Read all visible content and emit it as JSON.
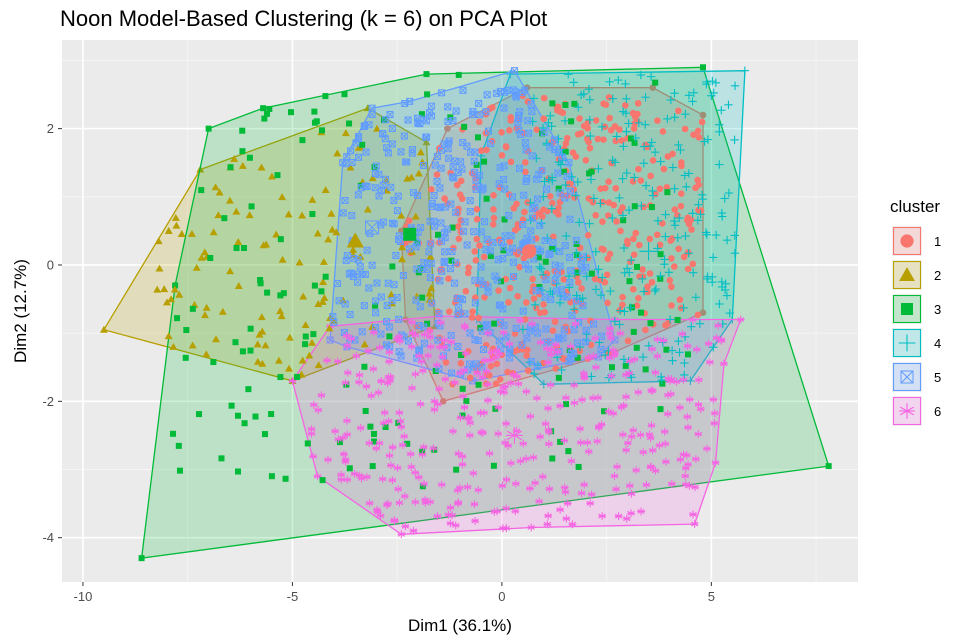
{
  "chart_data": {
    "type": "scatter",
    "title": "Noon Model-Based Clustering (k = 6) on PCA Plot",
    "xlabel": "Dim1 (36.1%)",
    "ylabel": "Dim2 (12.7%)",
    "xlim": [
      -10.5,
      8.5
    ],
    "ylim": [
      -4.65,
      3.3
    ],
    "x_ticks": [
      -10,
      -5,
      0,
      5
    ],
    "y_ticks": [
      -4,
      -2,
      0,
      2
    ],
    "x_tick_labels": [
      "-10",
      "-5",
      "0",
      "5"
    ],
    "y_tick_labels": [
      "-4",
      "-2",
      "0",
      "2"
    ],
    "grid": true,
    "legend": {
      "title": "cluster",
      "position": "right"
    },
    "series": [
      {
        "name": "1",
        "color": "#F8766D",
        "shape": "circle",
        "center": [
          0.65,
          0.2
        ],
        "point_cloud": {
          "xrange": [
            -2.5,
            5.0
          ],
          "yrange": [
            -1.9,
            2.5
          ],
          "n": 380,
          "seed": 11
        },
        "hull": [
          [
            -2.3,
            -0.8
          ],
          [
            -1.4,
            -2.0
          ],
          [
            2.6,
            -1.3
          ],
          [
            4.8,
            -0.7
          ],
          [
            4.8,
            2.2
          ],
          [
            3.6,
            2.6
          ],
          [
            0.6,
            2.6
          ],
          [
            -1.3,
            2.0
          ],
          [
            -2.4,
            0.5
          ]
        ]
      },
      {
        "name": "2",
        "color": "#B79F00",
        "shape": "triangle",
        "center": [
          -3.5,
          0.35
        ],
        "point_cloud": {
          "xrange": [
            -8.3,
            -1.6
          ],
          "yrange": [
            -1.7,
            2.0
          ],
          "n": 120,
          "seed": 22
        },
        "hull": [
          [
            -9.5,
            -0.95
          ],
          [
            -7.2,
            1.4
          ],
          [
            -3.2,
            2.3
          ],
          [
            -1.8,
            1.8
          ],
          [
            -1.6,
            -0.9
          ],
          [
            -5.0,
            -1.7
          ]
        ]
      },
      {
        "name": "3",
        "color": "#00BA38",
        "shape": "square",
        "center": [
          -2.2,
          0.45
        ],
        "point_cloud": {
          "xrange": [
            -8.0,
            4.5
          ],
          "yrange": [
            -3.3,
            2.8
          ],
          "n": 170,
          "seed": 33
        },
        "hull": [
          [
            -8.6,
            -4.3
          ],
          [
            -7.8,
            -0.3
          ],
          [
            -7.0,
            2.0
          ],
          [
            -5.7,
            2.3
          ],
          [
            -1.8,
            2.8
          ],
          [
            4.8,
            2.9
          ],
          [
            7.8,
            -2.95
          ]
        ]
      },
      {
        "name": "4",
        "color": "#00BFC4",
        "shape": "plus",
        "center": [
          3.5,
          0.2
        ],
        "point_cloud": {
          "xrange": [
            0.5,
            5.6
          ],
          "yrange": [
            -1.7,
            2.8
          ],
          "n": 240,
          "seed": 44
        },
        "hull": [
          [
            -0.6,
            -0.8
          ],
          [
            -0.5,
            1.6
          ],
          [
            0.2,
            2.8
          ],
          [
            5.8,
            2.85
          ],
          [
            5.5,
            -0.8
          ],
          [
            4.5,
            -1.7
          ],
          [
            1.0,
            -1.75
          ]
        ]
      },
      {
        "name": "5",
        "color": "#619CFF",
        "shape": "square-x",
        "center": [
          -3.1,
          0.55
        ],
        "point_cloud": {
          "xrange": [
            -4.2,
            2.4
          ],
          "yrange": [
            -1.6,
            2.6
          ],
          "n": 420,
          "seed": 55
        },
        "hull": [
          [
            -4.1,
            -1.1
          ],
          [
            -3.8,
            1.5
          ],
          [
            -3.1,
            2.3
          ],
          [
            -2.2,
            2.4
          ],
          [
            0.3,
            2.85
          ],
          [
            1.6,
            1.5
          ],
          [
            2.7,
            -1.1
          ],
          [
            2.3,
            -1.35
          ],
          [
            -0.7,
            -1.7
          ],
          [
            -3.7,
            -1.2
          ]
        ]
      },
      {
        "name": "6",
        "color": "#F564E3",
        "shape": "asterisk",
        "center": [
          0.3,
          -2.5
        ],
        "point_cloud": {
          "xrange": [
            -4.6,
            5.4
          ],
          "yrange": [
            -3.95,
            -0.8
          ],
          "n": 360,
          "seed": 66
        },
        "hull": [
          [
            -5.0,
            -1.7
          ],
          [
            -4.1,
            -0.9
          ],
          [
            -1.5,
            -0.75
          ],
          [
            2.7,
            -0.8
          ],
          [
            5.7,
            -0.8
          ],
          [
            5.3,
            -1.45
          ],
          [
            5.1,
            -2.9
          ],
          [
            4.6,
            -3.8
          ],
          [
            0.7,
            -3.85
          ],
          [
            -2.4,
            -3.95
          ],
          [
            -4.4,
            -3.1
          ]
        ]
      }
    ]
  }
}
